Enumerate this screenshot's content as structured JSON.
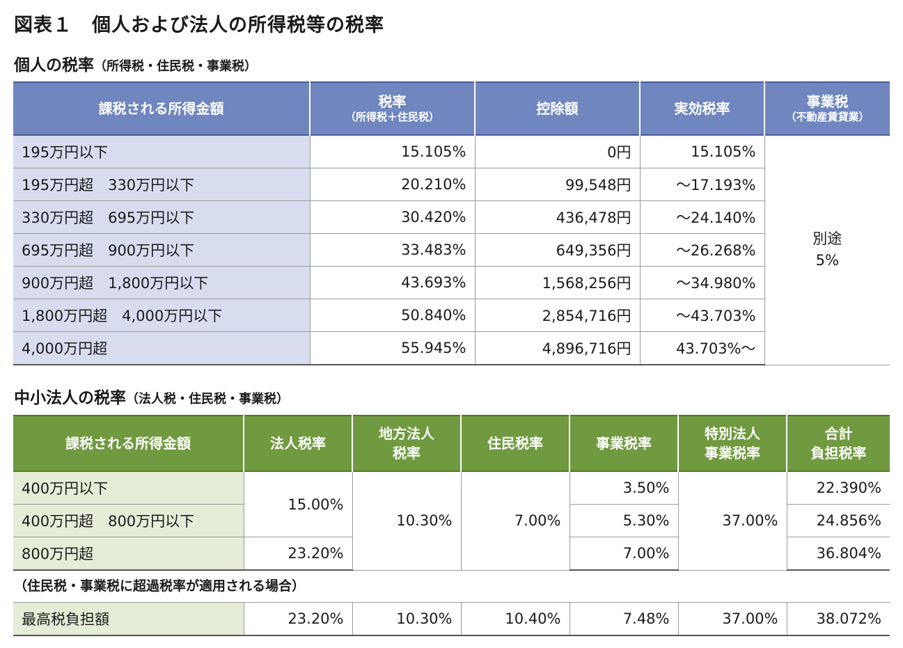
{
  "title": "図表１　個人および法人の所得税等の税率",
  "individual": {
    "heading": "個人の税率",
    "heading_sub": "（所得税・住民税・事業税）",
    "headers": {
      "income": "課税される所得金額",
      "rate": "税率",
      "rate_sub": "（所得税＋住民税）",
      "deduction": "控除額",
      "effective": "実効税率",
      "business": "事業税",
      "business_sub": "（不動産賃貸業）"
    },
    "rows": [
      {
        "income": "195万円以下",
        "rate": "15.105%",
        "deduction": "0円",
        "effective": "15.105%"
      },
      {
        "income": "195万円超　330万円以下",
        "rate": "20.210%",
        "deduction": "99,548円",
        "effective": "～17.193%"
      },
      {
        "income": "330万円超　695万円以下",
        "rate": "30.420%",
        "deduction": "436,478円",
        "effective": "～24.140%"
      },
      {
        "income": "695万円超　900万円以下",
        "rate": "33.483%",
        "deduction": "649,356円",
        "effective": "～26.268%"
      },
      {
        "income": "900万円超　1,800万円以下",
        "rate": "43.693%",
        "deduction": "1,568,256円",
        "effective": "～34.980%"
      },
      {
        "income": "1,800万円超　4,000万円以下",
        "rate": "50.840%",
        "deduction": "2,854,716円",
        "effective": "～43.703%"
      },
      {
        "income": "4,000万円超",
        "rate": "55.945%",
        "deduction": "4,896,716円",
        "effective": "43.703%～"
      }
    ],
    "business_line1": "別途",
    "business_line2": "5%"
  },
  "corporate": {
    "heading": "中小法人の税率",
    "heading_sub": "（法人税・住民税・事業税）",
    "headers": {
      "income": "課税される所得金額",
      "corp_tax": "法人税率",
      "local_corp_1": "地方法人",
      "local_corp_2": "税率",
      "resident": "住民税率",
      "enterprise": "事業税率",
      "special_1": "特別法人",
      "special_2": "事業税率",
      "total_1": "合計",
      "total_2": "負担税率"
    },
    "rows": [
      {
        "income": "400万円以下",
        "enterprise": "3.50%",
        "total": "22.390%"
      },
      {
        "income": "400万円超　800万円以下",
        "enterprise": "5.30%",
        "total": "24.856%"
      },
      {
        "income": "800万円超",
        "enterprise": "7.00%",
        "total": "36.804%"
      }
    ],
    "corp_tax_low": "15.00%",
    "corp_tax_high": "23.20%",
    "local_corp": "10.30%",
    "resident": "7.00%",
    "special": "37.00%"
  },
  "excess": {
    "note": "（住民税・事業税に超過税率が適用される場合）",
    "label": "最高税負担額",
    "corp_tax": "23.20%",
    "local_corp": "10.30%",
    "resident": "10.40%",
    "enterprise": "7.48%",
    "special": "37.00%",
    "total": "38.072%"
  }
}
